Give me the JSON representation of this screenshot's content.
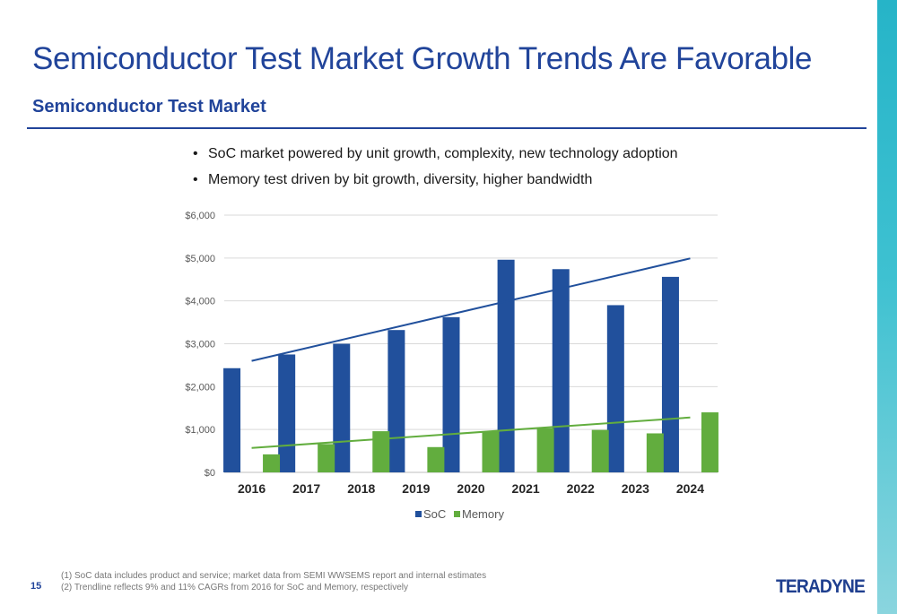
{
  "header": {
    "title": "Semiconductor Test Market Growth Trends Are Favorable",
    "subtitle": "Semiconductor Test Market"
  },
  "bullets": [
    "SoC market powered by unit growth, complexity, new technology adoption",
    "Memory test driven by bit growth, diversity, higher bandwidth"
  ],
  "bullet_symbol": "•",
  "chart_data": {
    "type": "bar",
    "categories": [
      "2016",
      "2017",
      "2018",
      "2019",
      "2020",
      "2021",
      "2022",
      "2023",
      "2024"
    ],
    "series": [
      {
        "name": "SoC",
        "color": "#21509c",
        "values": [
          2430,
          2750,
          3000,
          3320,
          3620,
          4960,
          4740,
          3900,
          4560
        ]
      },
      {
        "name": "Memory",
        "color": "#62ad3e",
        "values": [
          420,
          660,
          960,
          590,
          960,
          1030,
          990,
          910,
          1400
        ]
      }
    ],
    "trendlines": [
      {
        "series": "SoC",
        "color": "#21509c",
        "start": 2600,
        "end": 4990
      },
      {
        "series": "Memory",
        "color": "#62ad3e",
        "start": 570,
        "end": 1280
      }
    ],
    "yticks": [
      0,
      1000,
      2000,
      3000,
      4000,
      5000,
      6000
    ],
    "ytick_labels": [
      "$0",
      "$1,000",
      "$2,000",
      "$3,000",
      "$4,000",
      "$5,000",
      "$6,000"
    ],
    "ylim": [
      0,
      6000
    ],
    "grid": true,
    "legend_position": "bottom",
    "xlabel": "",
    "ylabel": ""
  },
  "footnotes": [
    "(1)  SoC data includes product and service; market data from SEMI WWSEMS report and internal estimates",
    "(2)  Trendline reflects 9% and 11% CAGRs from 2016 for SoC and Memory, respectively"
  ],
  "page_number": "15",
  "logo_text": "TERADYNE"
}
